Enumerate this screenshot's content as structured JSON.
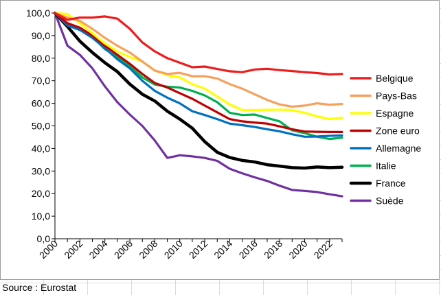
{
  "source_note": "Source : Eurostat",
  "chart_data": {
    "type": "line",
    "x": [
      2000,
      2001,
      2002,
      2003,
      2004,
      2005,
      2006,
      2007,
      2008,
      2009,
      2010,
      2011,
      2012,
      2013,
      2014,
      2015,
      2016,
      2017,
      2018,
      2019,
      2020,
      2021,
      2022,
      2023
    ],
    "x_ticks": [
      "2000",
      "2002",
      "2004",
      "2006",
      "2008",
      "2010",
      "2012",
      "2014",
      "2016",
      "2018",
      "2020",
      "2022"
    ],
    "y_ticks": [
      "0,0",
      "10,0",
      "20,0",
      "30,0",
      "40,0",
      "50,0",
      "60,0",
      "70,0",
      "80,0",
      "90,0",
      "100,0"
    ],
    "ylim": [
      0,
      100
    ],
    "xlabel": "",
    "ylabel": "",
    "grid": "none",
    "legend_position": "right",
    "series": [
      {
        "name": "Belgique",
        "color": "#ee1c1c",
        "values": [
          100,
          97.0,
          98.0,
          98.0,
          98.5,
          97.5,
          93,
          87,
          83,
          80,
          78,
          76,
          76.3,
          75.2,
          74.2,
          73.8,
          75,
          75.3,
          74.7,
          74.3,
          73.8,
          73.4,
          72.8,
          73.0
        ]
      },
      {
        "name": "Pays-Bas",
        "color": "#f7a05c",
        "values": [
          100,
          98.0,
          96.5,
          93.0,
          89.0,
          85.5,
          82.5,
          78.5,
          74.5,
          73,
          73.5,
          72,
          72,
          71.0,
          68.5,
          66.5,
          64,
          61.5,
          59.5,
          58.5,
          59,
          60.0,
          59.4,
          59.7
        ]
      },
      {
        "name": "Espagne",
        "color": "#ffff00",
        "values": [
          100,
          99.5,
          95.5,
          91.0,
          86.5,
          83.0,
          80.5,
          78.5,
          74.5,
          72.5,
          71.5,
          68.5,
          66.5,
          63,
          59.5,
          57.0,
          57.0,
          57.1,
          57.2,
          57.0,
          55.8,
          54.2,
          53.0,
          53.6
        ]
      },
      {
        "name": "Zone euro",
        "color": "#c00000",
        "values": [
          100,
          95.5,
          93.5,
          90.0,
          85.5,
          81.5,
          77.5,
          73.0,
          69.0,
          67.0,
          64.5,
          62.0,
          59.0,
          56.0,
          53.0,
          52.0,
          51.5,
          51.0,
          49.8,
          48.5,
          47.5,
          47.4,
          47.3,
          47.3
        ]
      },
      {
        "name": "Allemagne",
        "color": "#0070c0",
        "values": [
          100,
          94.5,
          92.5,
          89.0,
          84.5,
          79.5,
          75.5,
          70.0,
          65.5,
          62.5,
          60.0,
          56.5,
          54.8,
          53.0,
          51.0,
          50.3,
          49.5,
          48.5,
          47.6,
          46.3,
          45.2,
          45.3,
          45.6,
          45.8
        ]
      },
      {
        "name": "Italie",
        "color": "#00b050",
        "values": [
          100,
          95.0,
          93.0,
          89.5,
          84.0,
          80.5,
          76.5,
          71.5,
          68.3,
          67.4,
          67.0,
          65.5,
          63.5,
          60.5,
          55.8,
          54.8,
          55.0,
          53.5,
          52.0,
          48.0,
          46.8,
          45.2,
          44.2,
          44.8
        ]
      },
      {
        "name": "France",
        "color": "#000000",
        "values": [
          100,
          94.0,
          87.5,
          82.5,
          78.0,
          74.0,
          68.5,
          64.0,
          61.0,
          56.5,
          53.0,
          49.0,
          43.0,
          38.3,
          36.0,
          34.7,
          34.0,
          32.8,
          32.2,
          31.5,
          31.3,
          31.8,
          31.5,
          31.7
        ]
      },
      {
        "name": "Suède",
        "color": "#7030a0",
        "values": [
          100,
          85.5,
          81.5,
          75.5,
          67.5,
          60.5,
          55.0,
          50.0,
          43.5,
          35.8,
          37.0,
          36.5,
          35.8,
          34.5,
          31.0,
          29.0,
          27.2,
          25.6,
          23.5,
          21.6,
          21.2,
          20.7,
          19.7,
          18.8
        ]
      }
    ]
  }
}
